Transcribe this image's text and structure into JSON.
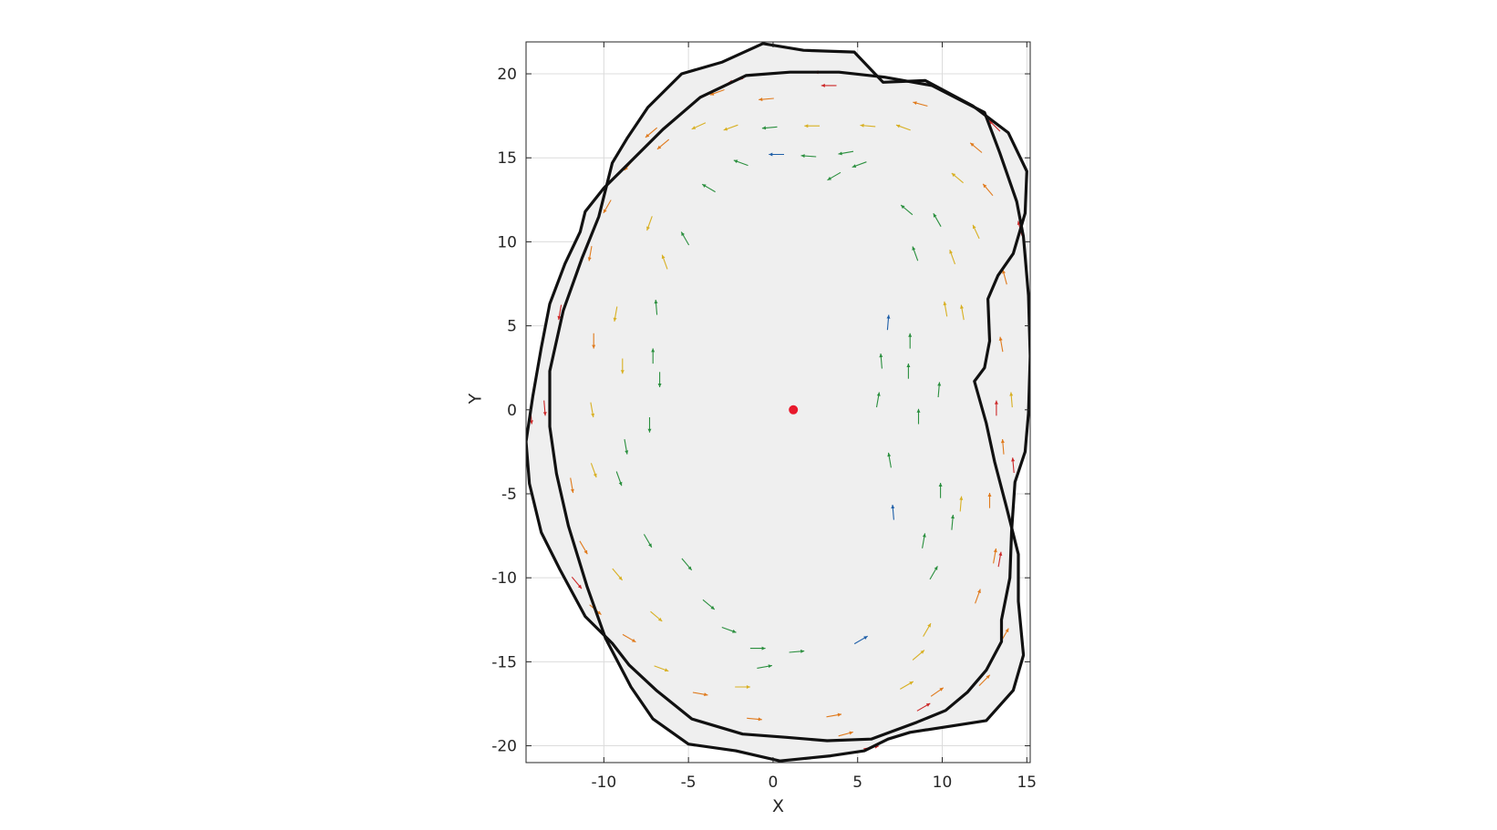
{
  "chart_data": {
    "type": "scatter",
    "xlabel": "X",
    "ylabel": "Y",
    "xlim": [
      -14.6,
      15.2
    ],
    "ylim": [
      -21,
      21.9
    ],
    "grid": true,
    "x_ticks": [
      -10,
      -5,
      0,
      5,
      10,
      15
    ],
    "y_ticks": [
      -20,
      -15,
      -10,
      -5,
      0,
      5,
      10,
      15,
      20
    ],
    "x_tick_labels": [
      "-10",
      "-5",
      "0",
      "5",
      "10",
      "15"
    ],
    "y_tick_labels": [
      "-20",
      "-15",
      "-10",
      "-5",
      "0",
      "5",
      "10",
      "15",
      "20"
    ],
    "center_point": {
      "x": 1.2,
      "y": 0,
      "color": "#e8192c"
    },
    "surface_fill": "#efefef",
    "outline_color": "#111111",
    "outlines": [
      {
        "points": [
          [
            -0.6,
            21.8
          ],
          [
            1.8,
            21.4
          ],
          [
            4.8,
            21.3
          ],
          [
            6.5,
            19.5
          ],
          [
            9,
            19.6
          ],
          [
            11.8,
            18.1
          ],
          [
            13.9,
            16.5
          ],
          [
            15,
            14.2
          ],
          [
            14.9,
            11.7
          ],
          [
            14.2,
            9.3
          ],
          [
            13.3,
            8
          ],
          [
            12.7,
            6.6
          ],
          [
            12.8,
            4.1
          ],
          [
            12.5,
            2.5
          ],
          [
            11.9,
            1.7
          ],
          [
            12.6,
            -0.8
          ],
          [
            13.1,
            -3.1
          ],
          [
            13.8,
            -5.8
          ],
          [
            14.5,
            -8.6
          ],
          [
            14.5,
            -11.4
          ],
          [
            14.8,
            -14.6
          ],
          [
            14.2,
            -16.7
          ],
          [
            12.6,
            -18.5
          ],
          [
            10.7,
            -18.8
          ],
          [
            8.1,
            -19.2
          ],
          [
            6.8,
            -19.6
          ],
          [
            5.4,
            -20.3
          ],
          [
            3.4,
            -20.6
          ],
          [
            0.4,
            -20.9
          ],
          [
            -2.2,
            -20.3
          ],
          [
            -5,
            -19.9
          ],
          [
            -7.1,
            -18.4
          ],
          [
            -8.4,
            -16.5
          ],
          [
            -9.9,
            -13.6
          ],
          [
            -11,
            -10.5
          ],
          [
            -12.1,
            -6.9
          ],
          [
            -12.8,
            -3.8
          ],
          [
            -13.2,
            -1
          ],
          [
            -13.2,
            2.3
          ],
          [
            -12.4,
            5.9
          ],
          [
            -11.3,
            9
          ],
          [
            -10.3,
            11.5
          ],
          [
            -9.5,
            14.7
          ],
          [
            -8.6,
            16.2
          ],
          [
            -7.4,
            18
          ],
          [
            -5.4,
            20
          ],
          [
            -3,
            20.7
          ]
        ]
      },
      {
        "points": [
          [
            -1.6,
            19.9
          ],
          [
            1,
            20.1
          ],
          [
            3.9,
            20.1
          ],
          [
            6.6,
            19.8
          ],
          [
            9.4,
            19.3
          ],
          [
            12.5,
            17.7
          ],
          [
            13.4,
            15.3
          ],
          [
            14.4,
            12.4
          ],
          [
            14.8,
            10.3
          ],
          [
            15.1,
            6.8
          ],
          [
            15.2,
            3.2
          ],
          [
            15.1,
            -0.2
          ],
          [
            14.9,
            -2.5
          ],
          [
            14.3,
            -4.3
          ],
          [
            14.1,
            -7.2
          ],
          [
            14,
            -10
          ],
          [
            13.5,
            -12.5
          ],
          [
            13.5,
            -13.8
          ],
          [
            12.6,
            -15.5
          ],
          [
            11.5,
            -16.8
          ],
          [
            10.2,
            -17.9
          ],
          [
            8.5,
            -18.6
          ],
          [
            5.8,
            -19.6
          ],
          [
            3.2,
            -19.7
          ],
          [
            0.8,
            -19.5
          ],
          [
            -1.8,
            -19.3
          ],
          [
            -4.8,
            -18.4
          ],
          [
            -6.9,
            -16.7
          ],
          [
            -8.5,
            -15.2
          ],
          [
            -9.5,
            -13.9
          ],
          [
            -11.1,
            -12.3
          ],
          [
            -12.6,
            -9.5
          ],
          [
            -13.7,
            -7.3
          ],
          [
            -14.4,
            -4.4
          ],
          [
            -14.6,
            -1.9
          ],
          [
            -14.2,
            0.8
          ],
          [
            -13.7,
            3.7
          ],
          [
            -13.2,
            6.3
          ],
          [
            -12.3,
            8.7
          ],
          [
            -11.4,
            10.6
          ],
          [
            -11.1,
            11.8
          ],
          [
            -10,
            13.2
          ],
          [
            -8.3,
            14.9
          ],
          [
            -6.5,
            16.7
          ],
          [
            -4.3,
            18.6
          ]
        ]
      }
    ],
    "arrows": {
      "length_units": 0.9,
      "color_scale": [
        "#1f5fa8",
        "#2a8f3e",
        "#d8b023",
        "#e07a1c",
        "#cc2727"
      ],
      "vectors": [
        {
          "x": 0.2,
          "y": 15.2,
          "angle": 180,
          "m": 0.1
        },
        {
          "x": 2.1,
          "y": 15.1,
          "angle": 176,
          "m": 0.2
        },
        {
          "x": 4.3,
          "y": 15.3,
          "angle": 190,
          "m": 0.2
        },
        {
          "x": 5.1,
          "y": 14.6,
          "angle": 200,
          "m": 0.3
        },
        {
          "x": 3.6,
          "y": 13.9,
          "angle": 210,
          "m": 0.15
        },
        {
          "x": -1.9,
          "y": 14.7,
          "angle": 160,
          "m": 0.3
        },
        {
          "x": -3.8,
          "y": 13.2,
          "angle": 150,
          "m": 0.35
        },
        {
          "x": -5.2,
          "y": 10.2,
          "angle": 120,
          "m": 0.3
        },
        {
          "x": -6.4,
          "y": 8.8,
          "angle": 110,
          "m": 0.4
        },
        {
          "x": -6.9,
          "y": 6.1,
          "angle": 95,
          "m": 0.3
        },
        {
          "x": -7.1,
          "y": 3.2,
          "angle": 90,
          "m": 0.2
        },
        {
          "x": -6.7,
          "y": 1.8,
          "angle": 270,
          "m": 0.15
        },
        {
          "x": -7.3,
          "y": -0.9,
          "angle": 270,
          "m": 0.25
        },
        {
          "x": -8.7,
          "y": -2.2,
          "angle": 280,
          "m": 0.3
        },
        {
          "x": -9.1,
          "y": -4.1,
          "angle": 290,
          "m": 0.35
        },
        {
          "x": -7.4,
          "y": -7.8,
          "angle": 300,
          "m": 0.3
        },
        {
          "x": -5.1,
          "y": -9.2,
          "angle": 310,
          "m": 0.2
        },
        {
          "x": -3.8,
          "y": -11.6,
          "angle": 320,
          "m": 0.25
        },
        {
          "x": -2.6,
          "y": -13.1,
          "angle": 340,
          "m": 0.3
        },
        {
          "x": -0.9,
          "y": -14.2,
          "angle": 0,
          "m": 0.15
        },
        {
          "x": 1.4,
          "y": -14.4,
          "angle": 5,
          "m": 0.2
        },
        {
          "x": -0.5,
          "y": -15.3,
          "angle": 10,
          "m": 0.3
        },
        {
          "x": 5.2,
          "y": -13.7,
          "angle": 30,
          "m": 0.1
        },
        {
          "x": 8.6,
          "y": -14.6,
          "angle": 40,
          "m": 0.4
        },
        {
          "x": 9.1,
          "y": -13.1,
          "angle": 60,
          "m": 0.5
        },
        {
          "x": 9.5,
          "y": -9.7,
          "angle": 60,
          "m": 0.3
        },
        {
          "x": 8.9,
          "y": -7.8,
          "angle": 80,
          "m": 0.2
        },
        {
          "x": 10.6,
          "y": -6.7,
          "angle": 85,
          "m": 0.35
        },
        {
          "x": 7.1,
          "y": -6.1,
          "angle": 95,
          "m": 0.1
        },
        {
          "x": 9.9,
          "y": -4.8,
          "angle": 90,
          "m": 0.2
        },
        {
          "x": 6.9,
          "y": -3,
          "angle": 100,
          "m": 0.15
        },
        {
          "x": 8.6,
          "y": -0.4,
          "angle": 90,
          "m": 0.2
        },
        {
          "x": 9.8,
          "y": 1.2,
          "angle": 85,
          "m": 0.35
        },
        {
          "x": 8,
          "y": 2.3,
          "angle": 90,
          "m": 0.15
        },
        {
          "x": 6.4,
          "y": 2.9,
          "angle": 95,
          "m": 0.25
        },
        {
          "x": 6.8,
          "y": 5.2,
          "angle": 85,
          "m": 0.1
        },
        {
          "x": 6.2,
          "y": 0.6,
          "angle": 80,
          "m": 0.15
        },
        {
          "x": 8.1,
          "y": 4.1,
          "angle": 90,
          "m": 0.2
        },
        {
          "x": 10.2,
          "y": 6,
          "angle": 100,
          "m": 0.5
        },
        {
          "x": 8.4,
          "y": 9.3,
          "angle": 110,
          "m": 0.3
        },
        {
          "x": 10.6,
          "y": 9.1,
          "angle": 110,
          "m": 0.4
        },
        {
          "x": 9.7,
          "y": 11.3,
          "angle": 120,
          "m": 0.2
        },
        {
          "x": 7.9,
          "y": 11.9,
          "angle": 140,
          "m": 0.15
        },
        {
          "x": 10.9,
          "y": 13.8,
          "angle": 140,
          "m": 0.55
        },
        {
          "x": 7.7,
          "y": 16.8,
          "angle": 160,
          "m": 0.45
        },
        {
          "x": 5.6,
          "y": 16.9,
          "angle": 175,
          "m": 0.5
        },
        {
          "x": 2.3,
          "y": 16.9,
          "angle": 180,
          "m": 0.4
        },
        {
          "x": -0.2,
          "y": 16.8,
          "angle": 185,
          "m": 0.3
        },
        {
          "x": -2.5,
          "y": 16.8,
          "angle": 200,
          "m": 0.5
        },
        {
          "x": -4.4,
          "y": 16.9,
          "angle": 205,
          "m": 0.6
        },
        {
          "x": -6.5,
          "y": 15.8,
          "angle": 220,
          "m": 0.65
        },
        {
          "x": -8.5,
          "y": 14.6,
          "angle": 230,
          "m": 0.8
        },
        {
          "x": -9.8,
          "y": 12.1,
          "angle": 240,
          "m": 0.7
        },
        {
          "x": -7.3,
          "y": 11.1,
          "angle": 250,
          "m": 0.55
        },
        {
          "x": -10.8,
          "y": 9.3,
          "angle": 260,
          "m": 0.8
        },
        {
          "x": -9.3,
          "y": 5.7,
          "angle": 260,
          "m": 0.55
        },
        {
          "x": -10.6,
          "y": 4.1,
          "angle": 270,
          "m": 0.65
        },
        {
          "x": -8.9,
          "y": 2.6,
          "angle": 270,
          "m": 0.5
        },
        {
          "x": -10.7,
          "y": 0,
          "angle": 280,
          "m": 0.45
        },
        {
          "x": -10.6,
          "y": -3.6,
          "angle": 290,
          "m": 0.5
        },
        {
          "x": -11.9,
          "y": -4.5,
          "angle": 280,
          "m": 0.85
        },
        {
          "x": -11.2,
          "y": -8.2,
          "angle": 300,
          "m": 0.8
        },
        {
          "x": -9.2,
          "y": -9.8,
          "angle": 310,
          "m": 0.6
        },
        {
          "x": -10.5,
          "y": -11.9,
          "angle": 320,
          "m": 0.85
        },
        {
          "x": -6.9,
          "y": -12.3,
          "angle": 320,
          "m": 0.5
        },
        {
          "x": -8.5,
          "y": -13.6,
          "angle": 330,
          "m": 0.75
        },
        {
          "x": -6.6,
          "y": -15.4,
          "angle": 340,
          "m": 0.6
        },
        {
          "x": -4.3,
          "y": -16.9,
          "angle": 350,
          "m": 0.7
        },
        {
          "x": -1.8,
          "y": -16.5,
          "angle": 0,
          "m": 0.6
        },
        {
          "x": -1.1,
          "y": -18.4,
          "angle": 355,
          "m": 0.8
        },
        {
          "x": 3.6,
          "y": -18.2,
          "angle": 10,
          "m": 0.85
        },
        {
          "x": 4.3,
          "y": -19.3,
          "angle": 15,
          "m": 0.75
        },
        {
          "x": 7.9,
          "y": -16.4,
          "angle": 30,
          "m": 0.55
        },
        {
          "x": 9.7,
          "y": -16.8,
          "angle": 35,
          "m": 0.75
        },
        {
          "x": 12.5,
          "y": -16.1,
          "angle": 45,
          "m": 0.85
        },
        {
          "x": 13.7,
          "y": -13.4,
          "angle": 60,
          "m": 0.8
        },
        {
          "x": 12.1,
          "y": -11.1,
          "angle": 70,
          "m": 0.65
        },
        {
          "x": 13.1,
          "y": -8.7,
          "angle": 80,
          "m": 0.75
        },
        {
          "x": 11.1,
          "y": -5.6,
          "angle": 85,
          "m": 0.55
        },
        {
          "x": 12.8,
          "y": -5.4,
          "angle": 90,
          "m": 0.8
        },
        {
          "x": 13.6,
          "y": -2.2,
          "angle": 95,
          "m": 0.75
        },
        {
          "x": 13.2,
          "y": 0.1,
          "angle": 90,
          "m": 0.9
        },
        {
          "x": 14.1,
          "y": 0.6,
          "angle": 95,
          "m": 0.6
        },
        {
          "x": 13.5,
          "y": 3.9,
          "angle": 100,
          "m": 0.7
        },
        {
          "x": 11.2,
          "y": 5.8,
          "angle": 100,
          "m": 0.55
        },
        {
          "x": 13.7,
          "y": 7.9,
          "angle": 105,
          "m": 0.85
        },
        {
          "x": 12,
          "y": 10.6,
          "angle": 115,
          "m": 0.5
        },
        {
          "x": 12.7,
          "y": 13.1,
          "angle": 130,
          "m": 0.7
        },
        {
          "x": 12,
          "y": 15.6,
          "angle": 140,
          "m": 0.75
        },
        {
          "x": 8.7,
          "y": 18.2,
          "angle": 165,
          "m": 0.8
        },
        {
          "x": 3.3,
          "y": 19.3,
          "angle": 180,
          "m": 0.9
        },
        {
          "x": -0.4,
          "y": 18.5,
          "angle": 185,
          "m": 0.7
        },
        {
          "x": -3.3,
          "y": 18.9,
          "angle": 200,
          "m": 0.85
        },
        {
          "x": -7.2,
          "y": 16.5,
          "angle": 220,
          "m": 0.8
        },
        {
          "x": -12.6,
          "y": 5.8,
          "angle": 260,
          "m": 0.95
        },
        {
          "x": -13.5,
          "y": 0.1,
          "angle": 275,
          "m": 0.9
        },
        {
          "x": -14.3,
          "y": -0.4,
          "angle": 275,
          "m": 1
        },
        {
          "x": -11.6,
          "y": -10.3,
          "angle": 310,
          "m": 0.95
        },
        {
          "x": 5.8,
          "y": -20.1,
          "angle": 10,
          "m": 1
        },
        {
          "x": 8.9,
          "y": -17.7,
          "angle": 30,
          "m": 0.9
        },
        {
          "x": 13.4,
          "y": -8.9,
          "angle": 80,
          "m": 1
        },
        {
          "x": 14.2,
          "y": -3.3,
          "angle": 95,
          "m": 1
        },
        {
          "x": 14.6,
          "y": 10.8,
          "angle": 105,
          "m": 1
        },
        {
          "x": 13.1,
          "y": 16.9,
          "angle": 135,
          "m": 0.95
        },
        {
          "x": 2.9,
          "y": 20.1,
          "angle": 180,
          "m": 1
        },
        {
          "x": -2.2,
          "y": 19.6,
          "angle": 195,
          "m": 1
        }
      ]
    }
  }
}
